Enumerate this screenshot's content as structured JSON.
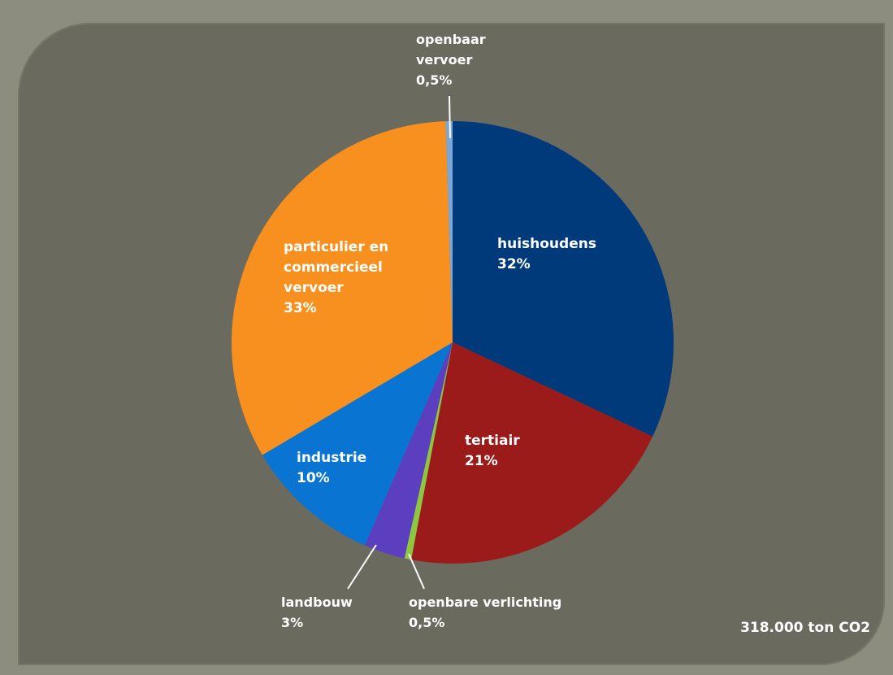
{
  "chart_data": {
    "type": "pie",
    "total_label": "318.000 ton CO2",
    "slices": [
      {
        "name": "huishoudens",
        "value": 32,
        "label_lines": [
          "huishoudens",
          "32%"
        ],
        "color": "#003a7a"
      },
      {
        "name": "tertiair",
        "value": 21,
        "label_lines": [
          "tertiair",
          "21%"
        ],
        "color": "#9b1a1a"
      },
      {
        "name": "openbare verlichting",
        "value": 0.5,
        "label_lines": [
          "openbare verlichting",
          "0,5%"
        ],
        "color": "#8fc63f"
      },
      {
        "name": "landbouw",
        "value": 3,
        "label_lines": [
          "landbouw",
          "3%"
        ],
        "color": "#5b3fbf"
      },
      {
        "name": "industrie",
        "value": 10,
        "label_lines": [
          "industrie",
          "10%"
        ],
        "color": "#0a74d2"
      },
      {
        "name": "particulier en commercieel vervoer",
        "value": 33,
        "label_lines": [
          "particulier en",
          "commercieel",
          "vervoer",
          "33%"
        ],
        "color": "#f7901e"
      },
      {
        "name": "openbaar vervoer",
        "value": 0.5,
        "label_lines": [
          "openbaar",
          "vervoer",
          "0,5%"
        ],
        "color": "#7aa7d8"
      }
    ]
  }
}
